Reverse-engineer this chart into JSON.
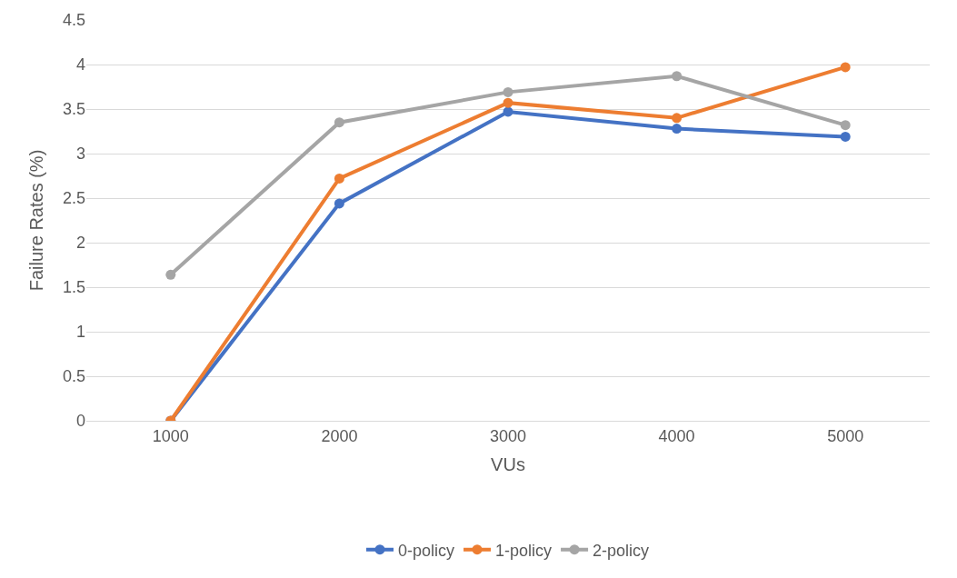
{
  "chart_data": {
    "type": "line",
    "xlabel": "VUs",
    "ylabel": "Failure Rates (%)",
    "categories": [
      "1000",
      "2000",
      "3000",
      "4000",
      "5000"
    ],
    "series": [
      {
        "name": "0-policy",
        "color": "#4472c4",
        "values": [
          0,
          2.44,
          3.47,
          3.28,
          3.19
        ]
      },
      {
        "name": "1-policy",
        "color": "#ed7d31",
        "values": [
          0,
          2.72,
          3.57,
          3.4,
          3.97
        ]
      },
      {
        "name": "2-policy",
        "color": "#a5a5a5",
        "values": [
          1.64,
          3.35,
          3.69,
          3.87,
          3.32
        ]
      }
    ],
    "ylim": [
      0,
      4.5
    ],
    "yticks": [
      0,
      0.5,
      1,
      1.5,
      2,
      2.5,
      3,
      3.5,
      4,
      4.5
    ],
    "grid": "y",
    "legend": "bottom",
    "marker": "circle",
    "line_style": "solid"
  }
}
